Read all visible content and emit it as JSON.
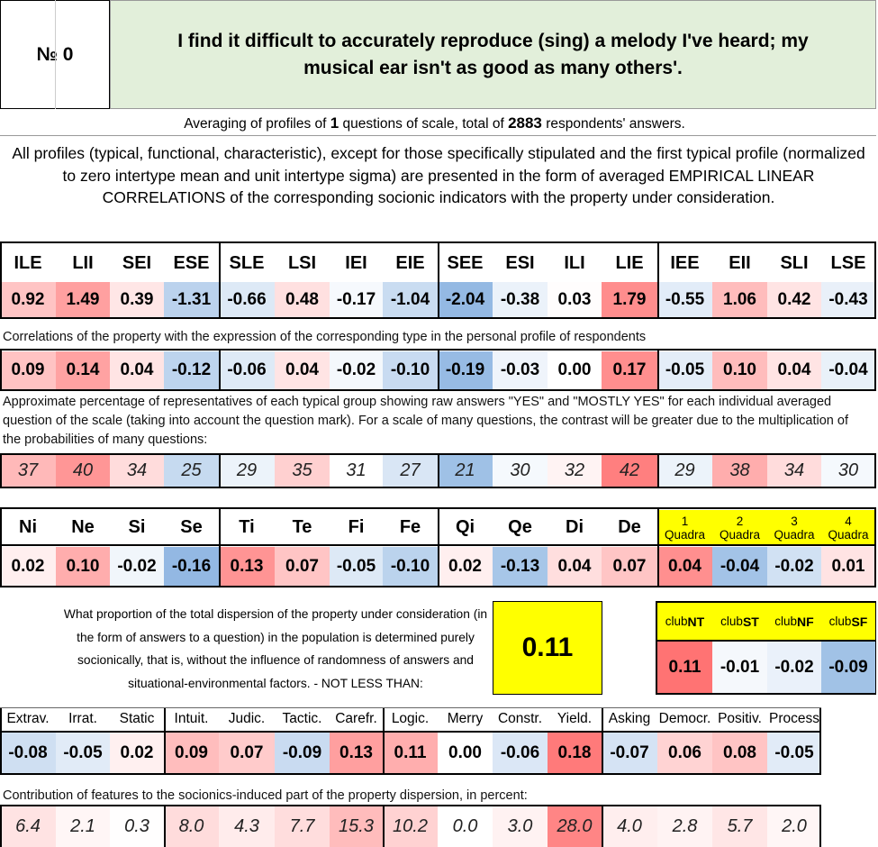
{
  "header": {
    "number_label": "№",
    "number_value": "0",
    "question": "I find it difficult to accurately reproduce (sing) a melody I've heard; my musical ear isn't as good as many others'."
  },
  "summary": {
    "prefix": "Averaging of profiles of ",
    "questions_count": "1",
    "middle": " questions of scale, total of ",
    "respondents": "2883",
    "suffix": " respondents' answers."
  },
  "description": "All profiles (typical, functional, characteristic), except for those specifically stipulated and the first typical profile (normalized to zero intertype mean and unit intertype sigma) are presented in the form of averaged EMPIRICAL LINEAR CORRELATIONS of the corresponding socionic indicators with the property under consideration.",
  "types": {
    "labels": [
      "ILE",
      "LII",
      "SEI",
      "ESE",
      "SLE",
      "LSI",
      "IEI",
      "EIE",
      "SEE",
      "ESI",
      "ILI",
      "LIE",
      "IEE",
      "EII",
      "SLI",
      "LSE"
    ],
    "normalized": [
      "0.92",
      "1.49",
      "0.39",
      "-1.31",
      "-0.66",
      "0.48",
      "-0.17",
      "-1.04",
      "-2.04",
      "-0.38",
      "0.03",
      "1.79",
      "-0.55",
      "1.06",
      "0.42",
      "-0.43"
    ],
    "correlations_note": "Correlations of the property with the expression of the corresponding type in the personal profile of respondents",
    "correlations": [
      "0.09",
      "0.14",
      "0.04",
      "-0.12",
      "-0.06",
      "0.04",
      "-0.02",
      "-0.10",
      "-0.19",
      "-0.03",
      "0.00",
      "0.17",
      "-0.05",
      "0.10",
      "0.04",
      "-0.04"
    ],
    "percent_note": "Approximate percentage of representatives of each typical group showing raw answers \"YES\" and \"MOSTLY YES\" for each individual averaged question of the scale (taking into account the question mark). For a scale of many questions, the contrast will be greater due to the multiplication of the probabilities of many questions:",
    "percentages": [
      "37",
      "40",
      "34",
      "25",
      "29",
      "35",
      "31",
      "27",
      "21",
      "30",
      "32",
      "42",
      "29",
      "38",
      "34",
      "30"
    ]
  },
  "functions": {
    "labels": [
      "Ni",
      "Ne",
      "Si",
      "Se",
      "Ti",
      "Te",
      "Fi",
      "Fe",
      "Qi",
      "Qe",
      "Di",
      "De"
    ],
    "values": [
      "0.02",
      "0.10",
      "-0.02",
      "-0.16",
      "0.13",
      "0.07",
      "-0.05",
      "-0.10",
      "0.02",
      "-0.13",
      "0.04",
      "0.07"
    ]
  },
  "quadras": {
    "numbers": [
      "1",
      "2",
      "3",
      "4"
    ],
    "label": "Quadra",
    "values": [
      "0.04",
      "-0.04",
      "-0.02",
      "0.01"
    ]
  },
  "dispersion": {
    "text": "What proportion of the total dispersion of the property under consideration (in the form of answers to a question) in the population is determined purely socionically, that is, without the influence of randomness of answers and situational-environmental factors. - NOT LESS THAN:",
    "value": "0.11"
  },
  "clubs": {
    "prefix": "club",
    "names": [
      "NT",
      "ST",
      "NF",
      "SF"
    ],
    "values": [
      "0.11",
      "-0.01",
      "-0.02",
      "-0.09"
    ]
  },
  "features": {
    "labels": [
      "Extrav.",
      "Irrat.",
      "Static",
      "Intuit.",
      "Judic.",
      "Tactic.",
      "Carefr.",
      "Logic.",
      "Merry",
      "Constr.",
      "Yield.",
      "Asking",
      "Democr.",
      "Positiv.",
      "Process"
    ],
    "values": [
      "-0.08",
      "-0.05",
      "0.02",
      "0.09",
      "0.07",
      "-0.09",
      "0.13",
      "0.11",
      "0.00",
      "-0.06",
      "0.18",
      "-0.07",
      "0.06",
      "0.08",
      "-0.05"
    ],
    "contribution_note": "Contribution of features to the socionics-induced part of the property dispersion, in percent:",
    "contributions": [
      "6.4",
      "2.1",
      "0.3",
      "8.0",
      "4.3",
      "7.7",
      "15.3",
      "10.2",
      "0.0",
      "3.0",
      "28.0",
      "4.0",
      "2.8",
      "5.7",
      "2.0"
    ]
  },
  "colors": {
    "header_green": "#e2efda",
    "highlight_yellow": "#ffff00",
    "positive": "#f08080",
    "negative": "#8eb4e3"
  }
}
